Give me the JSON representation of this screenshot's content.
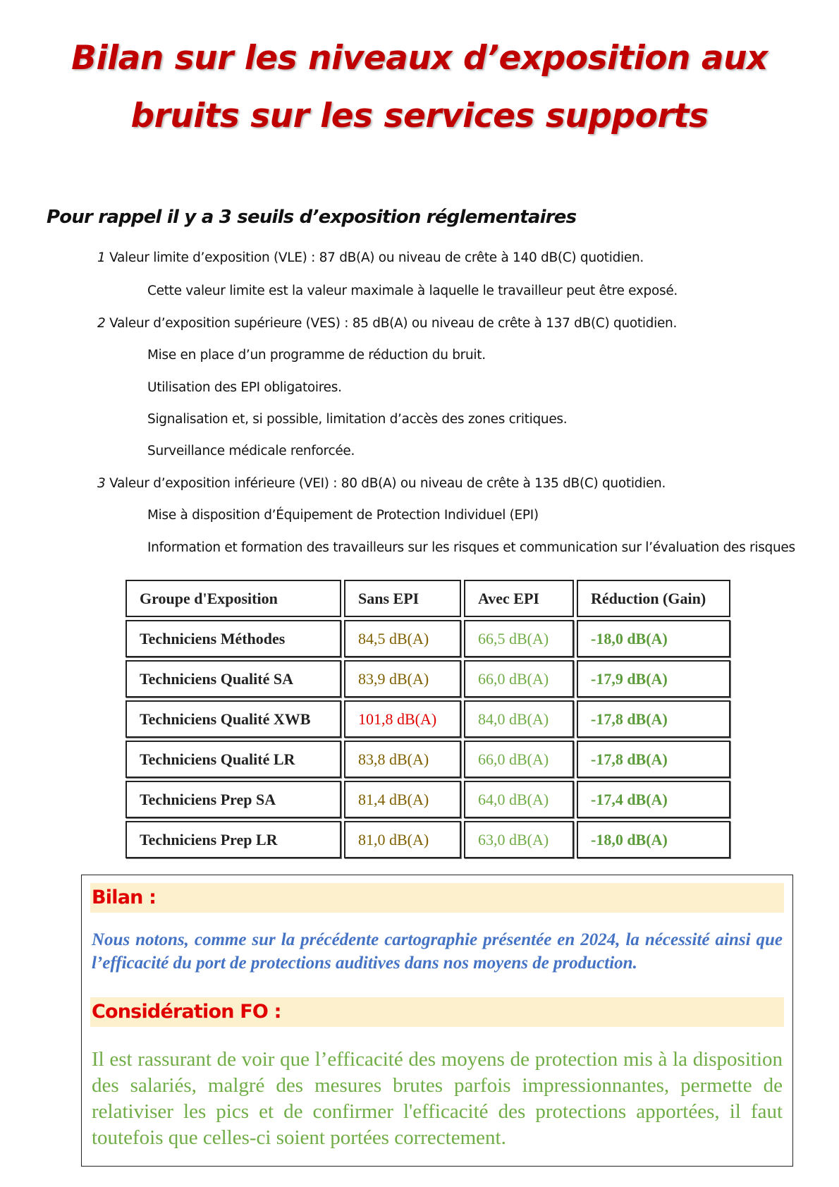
{
  "title": {
    "line1": "Bilan sur les niveaux d’exposition aux",
    "line2": "bruits sur les services supports"
  },
  "rappel": {
    "heading": "Pour rappel il y a 3 seuils d’exposition réglementaires",
    "items": [
      {
        "num": "1",
        "text": " Valeur limite d’exposition (VLE) : 87 dB(A) ou niveau de crête à 140 dB(C) quotidien.",
        "sub": [
          "Cette valeur limite est la valeur maximale à laquelle le travailleur peut être exposé."
        ]
      },
      {
        "num": "2",
        "text": " Valeur d’exposition supérieure (VES) : 85 dB(A) ou niveau de crête à 137 dB(C) quotidien.",
        "sub": [
          "Mise en place d’un programme de réduction du bruit.",
          "Utilisation des EPI obligatoires.",
          "Signalisation et, si possible, limitation d’accès des zones critiques.",
          "Surveillance médicale renforcée."
        ]
      },
      {
        "num": "3",
        "text": " Valeur d’exposition inférieure (VEI) : 80 dB(A) ou niveau de crête à 135 dB(C) quotidien.",
        "sub": [
          "Mise à disposition d’Équipement de Protection Individuel (EPI)",
          "Information et formation des travailleurs sur les risques et communication sur l’évaluation des risques"
        ]
      }
    ]
  },
  "table": {
    "headers": [
      "Groupe d'Exposition",
      "Sans EPI",
      "Avec EPI",
      "Réduction (Gain)"
    ],
    "rows": [
      [
        "Techniciens Méthodes",
        "84,5 dB(A)",
        "66,5 dB(A)",
        "-18,0 dB(A)"
      ],
      [
        "Techniciens Qualité SA",
        "83,9 dB(A)",
        "66,0 dB(A)",
        "-17,9 dB(A)"
      ],
      [
        "Techniciens Qualité XWB",
        "101,8 dB(A)",
        "84,0 dB(A)",
        "-17,8 dB(A)"
      ],
      [
        "Techniciens Qualité LR",
        "83,8 dB(A)",
        "66,0 dB(A)",
        "-17,8 dB(A)"
      ],
      [
        "Techniciens Prep SA",
        "81,4 dB(A)",
        "64,0 dB(A)",
        "-17,4 dB(A)"
      ],
      [
        "Techniciens Prep LR",
        "81,0 dB(A)",
        "63,0 dB(A)",
        "-18,0 dB(A)"
      ]
    ],
    "colors": {
      "sans_epi": "#7f6000",
      "sans_epi_alert": "#e00000",
      "avec_epi": "#70ad47",
      "reduction": "#5b9b3a"
    }
  },
  "bilan": {
    "heading": "Bilan :",
    "text": "Nous notons, comme sur la précédente cartographie présentée en 2024, la nécessité ainsi que l’efficacité du port de protections auditives dans nos moyens de production."
  },
  "consideration": {
    "heading": "Considération FO :",
    "text": "Il est rassurant de voir que l’efficacité des moyens de protection mis à la disposition des salariés, malgré des mesures brutes parfois impressionnantes, permette de relativiser les pics et de confirmer l'efficacité des protections apportées, il faut toutefois que celles-ci soient portées correctement."
  }
}
